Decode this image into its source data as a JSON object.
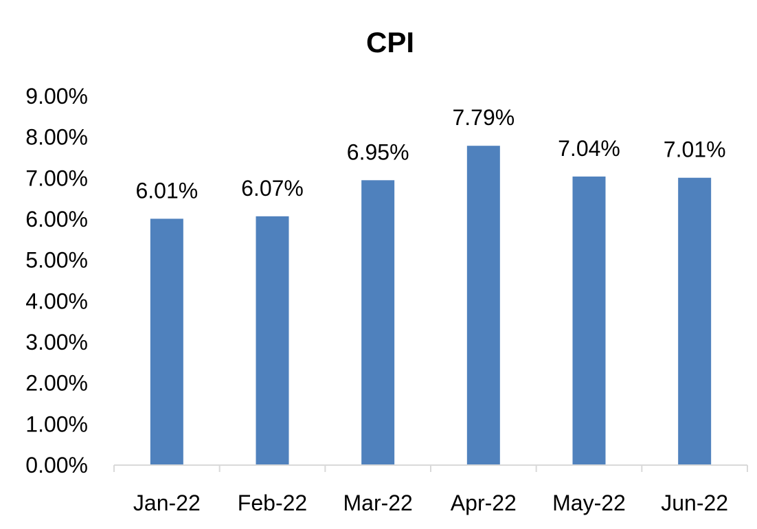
{
  "chart_data": {
    "type": "bar",
    "title": "CPI",
    "categories": [
      "Jan-22",
      "Feb-22",
      "Mar-22",
      "Apr-22",
      "May-22",
      "Jun-22"
    ],
    "series": [
      {
        "values": [
          6.01,
          6.07,
          6.95,
          7.79,
          7.04,
          7.01
        ],
        "labels": [
          "6.01%",
          "6.07%",
          "6.95%",
          "7.79%",
          "7.04%",
          "7.01%"
        ],
        "color": "#4f81bd"
      }
    ],
    "ylim": [
      0,
      9
    ],
    "yticks": [
      "0.00%",
      "1.00%",
      "2.00%",
      "3.00%",
      "4.00%",
      "5.00%",
      "6.00%",
      "7.00%",
      "8.00%",
      "9.00%"
    ],
    "xlabel": "",
    "ylabel": "",
    "grid": false,
    "legend": "none"
  },
  "colors": {
    "bar": "#4f81bd",
    "axis": "#d9d9d9"
  }
}
